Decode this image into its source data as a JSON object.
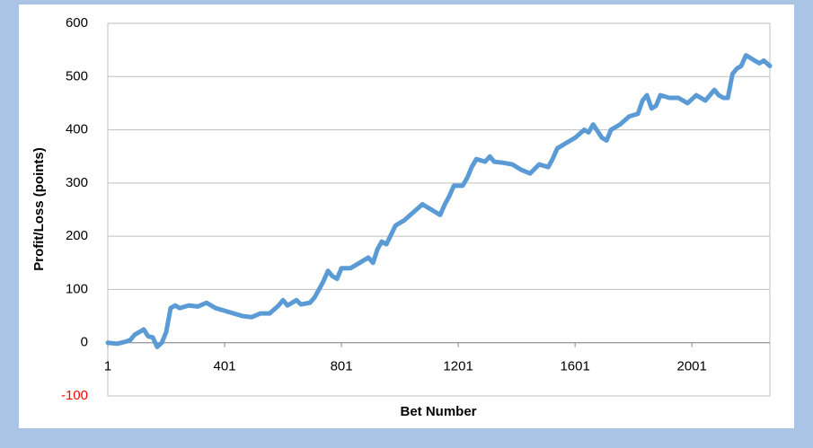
{
  "chart_data": {
    "type": "line",
    "x_label": "Bet Number",
    "y_label": "Profit/Loss (points)",
    "x": [
      1,
      32,
      62,
      78,
      93,
      109,
      124,
      139,
      155,
      170,
      186,
      201,
      216,
      232,
      247,
      278,
      309,
      339,
      370,
      401,
      432,
      463,
      493,
      524,
      555,
      586,
      601,
      616,
      632,
      647,
      662,
      693,
      709,
      724,
      739,
      755,
      770,
      786,
      801,
      832,
      863,
      893,
      909,
      924,
      939,
      955,
      986,
      1016,
      1047,
      1078,
      1109,
      1139,
      1155,
      1170,
      1186,
      1216,
      1232,
      1247,
      1263,
      1293,
      1309,
      1324,
      1355,
      1386,
      1416,
      1447,
      1478,
      1509,
      1524,
      1540,
      1570,
      1601,
      1632,
      1647,
      1663,
      1693,
      1709,
      1724,
      1755,
      1786,
      1816,
      1832,
      1847,
      1863,
      1878,
      1893,
      1924,
      1955,
      1986,
      2016,
      2047,
      2078,
      2093,
      2109,
      2124,
      2140,
      2155,
      2170,
      2186,
      2201,
      2216,
      2232,
      2247,
      2268
    ],
    "series": [
      {
        "name": "Profit/Loss",
        "color": "#5b9bd5",
        "values": [
          0,
          -2,
          2,
          5,
          15,
          20,
          25,
          12,
          10,
          -8,
          0,
          20,
          65,
          70,
          65,
          70,
          68,
          75,
          65,
          60,
          55,
          50,
          48,
          55,
          55,
          70,
          80,
          70,
          75,
          80,
          72,
          75,
          85,
          100,
          115,
          135,
          125,
          120,
          140,
          140,
          150,
          160,
          150,
          175,
          190,
          185,
          220,
          230,
          245,
          260,
          250,
          240,
          260,
          275,
          295,
          295,
          310,
          330,
          345,
          340,
          350,
          340,
          338,
          335,
          325,
          318,
          335,
          330,
          345,
          365,
          375,
          385,
          400,
          395,
          410,
          385,
          380,
          400,
          410,
          425,
          430,
          455,
          465,
          440,
          445,
          465,
          460,
          460,
          450,
          465,
          455,
          475,
          465,
          460,
          460,
          505,
          515,
          520,
          540,
          535,
          530,
          525,
          530,
          520
        ]
      }
    ],
    "xlim": [
      1,
      2268
    ],
    "xticks": [
      1,
      401,
      801,
      1201,
      1601,
      2001
    ],
    "ylim": [
      -100,
      600
    ],
    "yticks": [
      -100,
      0,
      100,
      200,
      300,
      400,
      500,
      600
    ],
    "negative_tick_color": "#ff0000",
    "grid": true
  }
}
